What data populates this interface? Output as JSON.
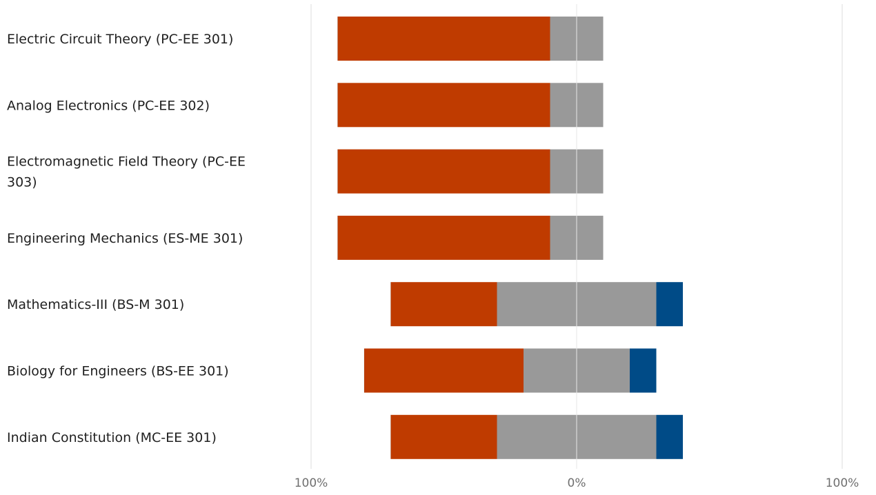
{
  "chart_data": {
    "type": "bar",
    "orientation": "horizontal",
    "stacking": "diverging",
    "categories": [
      [
        "Electric Circuit Theory (PC-EE 301)"
      ],
      [
        "Analog Electronics (PC-EE 302)"
      ],
      [
        "Electromagnetic Field Theory (PC-EE",
        "303)"
      ],
      [
        "Engineering Mechanics (ES-ME 301)"
      ],
      [
        "Mathematics-III (BS-M 301)"
      ],
      [
        "Biology for Engineers (BS-EE 301)"
      ],
      [
        "Indian Constitution (MC-EE 301)"
      ]
    ],
    "series": [
      {
        "color": "#BF3B00",
        "values": [
          80,
          80,
          80,
          80,
          40,
          60,
          40
        ]
      },
      {
        "color": "#999999",
        "values": [
          20,
          20,
          20,
          20,
          60,
          40,
          60
        ]
      },
      {
        "color": "#004B87",
        "values": [
          0,
          0,
          0,
          0,
          10,
          10,
          10
        ]
      }
    ],
    "neutral_series_index": 1,
    "x_ticks": [
      "100%",
      "0%",
      "100%"
    ],
    "xlim": [
      -100,
      100
    ],
    "grid": true,
    "legend": "none"
  }
}
